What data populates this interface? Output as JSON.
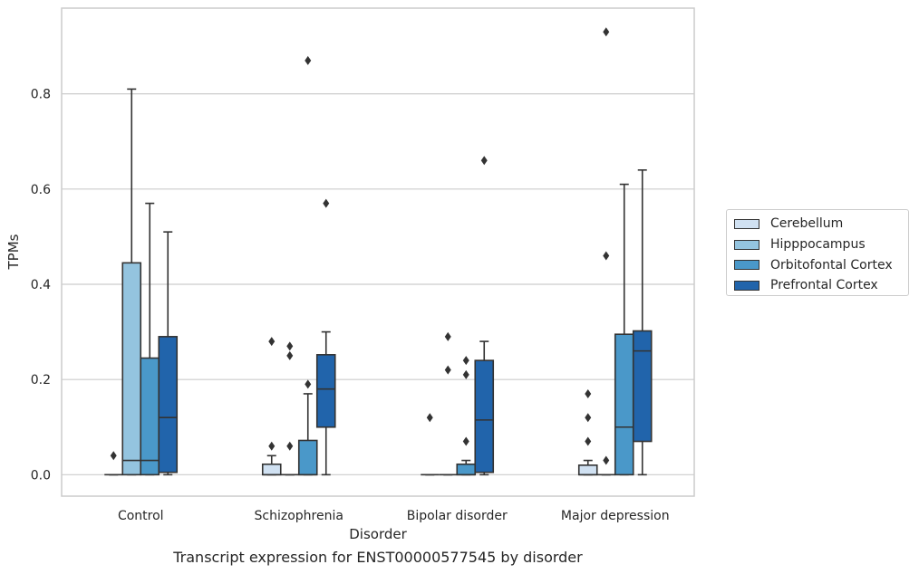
{
  "chart_data": {
    "type": "box",
    "title": "Transcript expression for ENST00000577545 by disorder",
    "xlabel": "Disorder",
    "ylabel": "TPMs",
    "ylim": [
      -0.045,
      0.98
    ],
    "yticks": [
      "0.0",
      "0.2",
      "0.4",
      "0.6",
      "0.8"
    ],
    "grid": true,
    "legend_position": "right",
    "categories": [
      "Control",
      "Schizophrenia",
      "Bipolar disorder",
      "Major depression"
    ],
    "series": [
      {
        "name": "Cerebellum",
        "color": "#d0e1f2",
        "boxes": [
          {
            "q1": 0.0,
            "median": 0.0,
            "q3": 0.0,
            "whislo": 0.0,
            "whishi": 0.0,
            "fliers": [
              0.04
            ]
          },
          {
            "q1": 0.0,
            "median": 0.0,
            "q3": 0.022,
            "whislo": 0.0,
            "whishi": 0.04,
            "fliers": [
              0.06,
              0.28
            ]
          },
          {
            "q1": 0.0,
            "median": 0.0,
            "q3": 0.0,
            "whislo": 0.0,
            "whishi": 0.0,
            "fliers": [
              0.12
            ]
          },
          {
            "q1": 0.0,
            "median": 0.0,
            "q3": 0.02,
            "whislo": 0.0,
            "whishi": 0.03,
            "fliers": [
              0.07,
              0.12,
              0.17
            ]
          }
        ]
      },
      {
        "name": "Hipppocampus",
        "color": "#94c4df",
        "boxes": [
          {
            "q1": 0.0,
            "median": 0.03,
            "q3": 0.445,
            "whislo": 0.0,
            "whishi": 0.81,
            "fliers": []
          },
          {
            "q1": 0.0,
            "median": 0.0,
            "q3": 0.0,
            "whislo": 0.0,
            "whishi": 0.0,
            "fliers": [
              0.06,
              0.25,
              0.27
            ]
          },
          {
            "q1": 0.0,
            "median": 0.0,
            "q3": 0.0,
            "whislo": 0.0,
            "whishi": 0.0,
            "fliers": [
              0.22,
              0.29
            ]
          },
          {
            "q1": 0.0,
            "median": 0.0,
            "q3": 0.0,
            "whislo": 0.0,
            "whishi": 0.0,
            "fliers": [
              0.03,
              0.46,
              0.93
            ]
          }
        ]
      },
      {
        "name": "Orbitofontal Cortex",
        "color": "#4a98c9",
        "boxes": [
          {
            "q1": 0.0,
            "median": 0.03,
            "q3": 0.245,
            "whislo": 0.0,
            "whishi": 0.57,
            "fliers": []
          },
          {
            "q1": 0.0,
            "median": 0.0,
            "q3": 0.072,
            "whislo": 0.0,
            "whishi": 0.17,
            "fliers": [
              0.19,
              0.87
            ]
          },
          {
            "q1": 0.0,
            "median": 0.0,
            "q3": 0.022,
            "whislo": 0.0,
            "whishi": 0.03,
            "fliers": [
              0.07,
              0.21,
              0.24
            ]
          },
          {
            "q1": 0.0,
            "median": 0.1,
            "q3": 0.295,
            "whislo": 0.0,
            "whishi": 0.61,
            "fliers": []
          }
        ]
      },
      {
        "name": "Prefrontal Cortex",
        "color": "#2164ab",
        "boxes": [
          {
            "q1": 0.005,
            "median": 0.12,
            "q3": 0.29,
            "whislo": 0.0,
            "whishi": 0.51,
            "fliers": []
          },
          {
            "q1": 0.1,
            "median": 0.18,
            "q3": 0.252,
            "whislo": 0.0,
            "whishi": 0.3,
            "fliers": [
              0.57
            ]
          },
          {
            "q1": 0.005,
            "median": 0.115,
            "q3": 0.24,
            "whislo": 0.0,
            "whishi": 0.28,
            "fliers": [
              0.66
            ]
          },
          {
            "q1": 0.07,
            "median": 0.26,
            "q3": 0.302,
            "whislo": 0.0,
            "whishi": 0.64,
            "fliers": []
          }
        ]
      }
    ]
  }
}
